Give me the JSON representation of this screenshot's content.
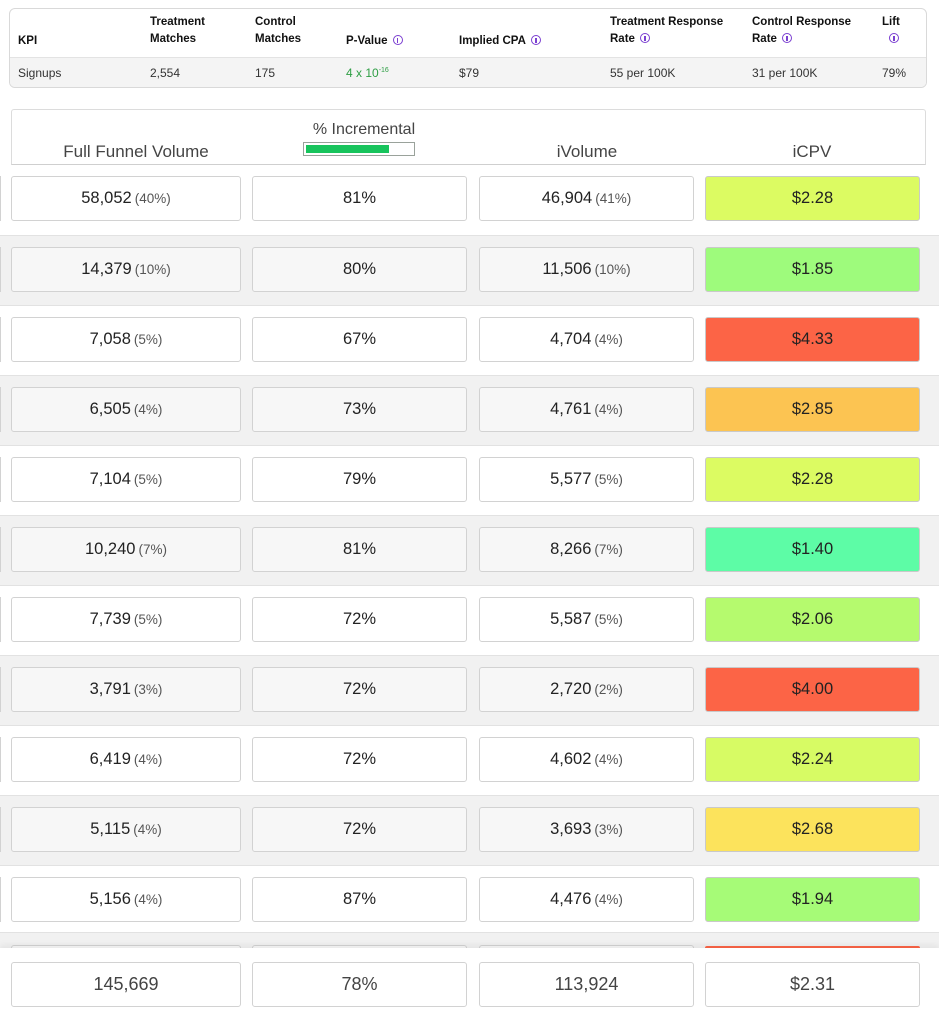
{
  "kpi_table": {
    "headers": {
      "kpi": "KPI",
      "treatment_matches": [
        "Treatment",
        "Matches"
      ],
      "control_matches": [
        "Control",
        "Matches"
      ],
      "p_value": "P-Value",
      "implied_cpa": "Implied CPA",
      "treatment_response_rate": [
        "Treatment Response",
        "Rate"
      ],
      "control_response_rate": [
        "Control Response",
        "Rate"
      ],
      "lift": "Lift"
    },
    "row": {
      "kpi": "Signups",
      "treatment_matches": "2,554",
      "control_matches": "175",
      "p_value_base": "4 x 10",
      "p_value_exp": "-16",
      "implied_cpa": "$79",
      "treatment_response_rate": "55 per 100K",
      "control_response_rate": "31 per 100K",
      "lift": "79%"
    },
    "colors": {
      "info_icon": "#7b3fd1",
      "p_value_text": "#2e9e44"
    }
  },
  "main_table": {
    "headers": {
      "full_funnel_volume": "Full Funnel Volume",
      "pct_incremental": "% Incremental",
      "ivolume": "iVolume",
      "icpv": "iCPV"
    },
    "incremental_bar_fill": 0.78,
    "rows": [
      {
        "volume": "58,052",
        "volume_pct": "(40%)",
        "incremental": "81%",
        "ivolume": "46,904",
        "ivolume_pct": "(41%)",
        "icpv": "$2.28",
        "icpv_color": "#dcfb62"
      },
      {
        "volume": "14,379",
        "volume_pct": "(10%)",
        "incremental": "80%",
        "ivolume": "11,506",
        "ivolume_pct": "(10%)",
        "icpv": "$1.85",
        "icpv_color": "#9efb7c"
      },
      {
        "volume": "7,058",
        "volume_pct": "(5%)",
        "incremental": "67%",
        "ivolume": "4,704",
        "ivolume_pct": "(4%)",
        "icpv": "$4.33",
        "icpv_color": "#fc6446"
      },
      {
        "volume": "6,505",
        "volume_pct": "(4%)",
        "incremental": "73%",
        "ivolume": "4,761",
        "ivolume_pct": "(4%)",
        "icpv": "$2.85",
        "icpv_color": "#fcc452"
      },
      {
        "volume": "7,104",
        "volume_pct": "(5%)",
        "incremental": "79%",
        "ivolume": "5,577",
        "ivolume_pct": "(5%)",
        "icpv": "$2.28",
        "icpv_color": "#dcfb62"
      },
      {
        "volume": "10,240",
        "volume_pct": "(7%)",
        "incremental": "81%",
        "ivolume": "8,266",
        "ivolume_pct": "(7%)",
        "icpv": "$1.40",
        "icpv_color": "#5dfca6"
      },
      {
        "volume": "7,739",
        "volume_pct": "(5%)",
        "incremental": "72%",
        "ivolume": "5,587",
        "ivolume_pct": "(5%)",
        "icpv": "$2.06",
        "icpv_color": "#b5fa6e"
      },
      {
        "volume": "3,791",
        "volume_pct": "(3%)",
        "incremental": "72%",
        "ivolume": "2,720",
        "ivolume_pct": "(2%)",
        "icpv": "$4.00",
        "icpv_color": "#fc6446"
      },
      {
        "volume": "6,419",
        "volume_pct": "(4%)",
        "incremental": "72%",
        "ivolume": "4,602",
        "ivolume_pct": "(4%)",
        "icpv": "$2.24",
        "icpv_color": "#d7fb64"
      },
      {
        "volume": "5,115",
        "volume_pct": "(4%)",
        "incremental": "72%",
        "ivolume": "3,693",
        "ivolume_pct": "(3%)",
        "icpv": "$2.68",
        "icpv_color": "#fce35c"
      },
      {
        "volume": "5,156",
        "volume_pct": "(4%)",
        "incremental": "87%",
        "ivolume": "4,476",
        "ivolume_pct": "(4%)",
        "icpv": "$1.94",
        "icpv_color": "#a6fb77"
      }
    ],
    "totals": {
      "volume": "145,669",
      "incremental": "78%",
      "ivolume": "113,924",
      "icpv": "$2.31"
    },
    "colors": {
      "incremental_bar": "#17c45c",
      "partial_row_icpv": "#fc6446"
    }
  }
}
